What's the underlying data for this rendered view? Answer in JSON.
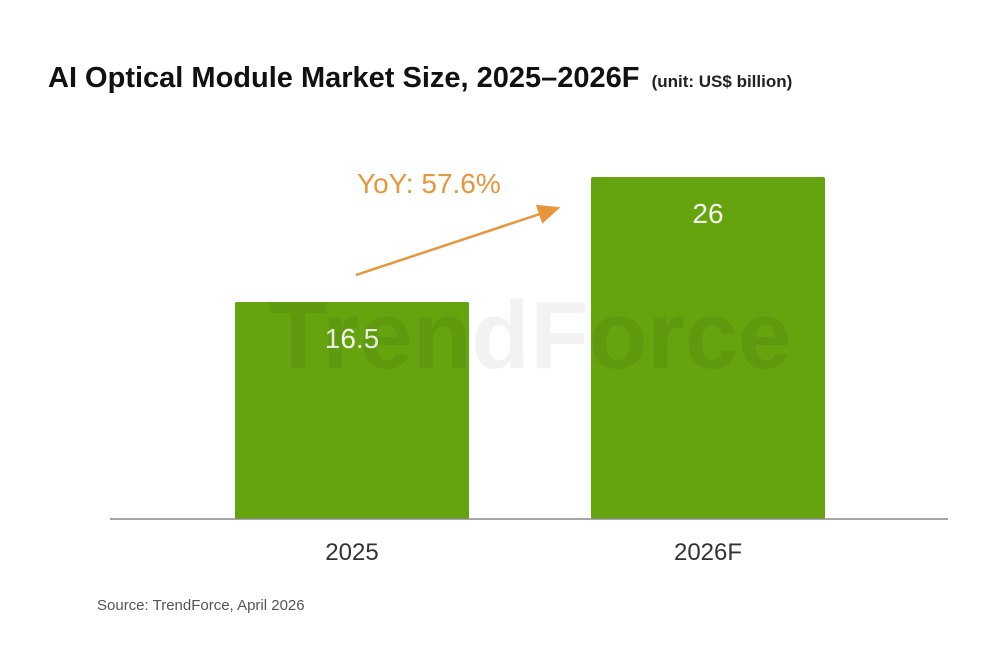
{
  "chart_data": {
    "type": "bar",
    "title": "AI Optical Module Market Size, 2025–2026F",
    "unit": "(unit: US$ billion)",
    "categories": [
      "2025",
      "2026F"
    ],
    "values": [
      16.5,
      26
    ],
    "value_labels": [
      "16.5",
      "26"
    ],
    "xlabel": "",
    "ylabel": "",
    "ylim": [
      0,
      26
    ],
    "grid": false,
    "annotation": "YoY: 57.6%",
    "bar_color": "#65a30f",
    "annotation_color": "#e8963c",
    "watermark": "TrendForce"
  },
  "source": "Source: TrendForce, April 2026"
}
